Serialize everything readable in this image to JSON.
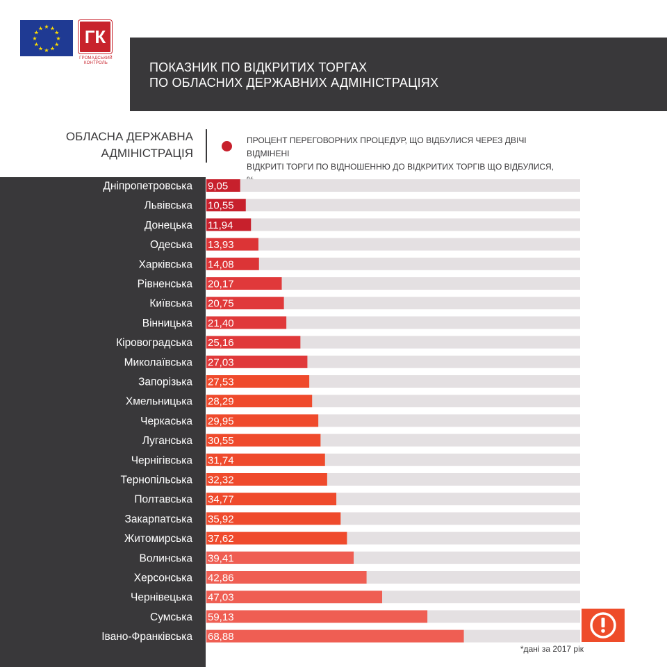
{
  "header": {
    "title_line1": "ПОКАЗНИК ПО ВІДКРИТИХ ТОРГАХ",
    "title_line2": "ПО ОБЛАСНИХ ДЕРЖАВНИХ АДМІНІСТРАЦІЯХ",
    "category_label_line1": "ОБЛАСНА ДЕРЖАВНА",
    "category_label_line2": "АДМІНІСТРАЦІЯ",
    "legend_line1": "ПРОЦЕНТ ПЕРЕГОВОРНИХ ПРОЦЕДУР, ЩО ВІДБУЛИСЯ ЧЕРЕЗ ДВІЧІ ВІДМІНЕНІ",
    "legend_line2": "ВІДКРИТІ ТОРГИ ПО ВІДНОШЕННЮ  ДО ВІДКРИТИХ ТОРГІВ ЩО ВІДБУЛИСЯ, %"
  },
  "logo": {
    "brand_text": "ГК",
    "brand_caption_line1": "ГРОМАДСЬКИЙ",
    "brand_caption_line2": "КОНТРОЛЬ"
  },
  "footnote": "*дані за 2017 рік",
  "icons": {
    "eu": "eu-flag-icon",
    "brand": "gk-logo-icon",
    "legend": "red-dot-icon",
    "alert": "exclamation-circle-icon"
  },
  "colors": {
    "dark": "#39383a",
    "track": "#e4e0e2",
    "bar_dark": "#c7202c",
    "bar_mid": "#e0393a",
    "bar_orange": "#ef4a2c",
    "bar_light": "#ef5e53",
    "alert": "#ee4c2a"
  },
  "chart_data": {
    "type": "bar",
    "orientation": "horizontal",
    "xlim": [
      0,
      100
    ],
    "categories": [
      "Дніпропетровська",
      "Львівська",
      "Донецька",
      "Одеська",
      "Харківська",
      "Рівненська",
      "Київська",
      "Вінницька",
      "Кіровоградська",
      "Миколаївська",
      "Запорізька",
      "Хмельницька",
      "Черкаська",
      "Луганська",
      "Чернігівська",
      "Тернопільська",
      "Полтавська",
      "Закарпатська",
      "Житомирська",
      "Волинська",
      "Херсонська",
      "Чернівецька",
      "Сумська",
      "Івано-Франківська"
    ],
    "values": [
      9.05,
      10.55,
      11.94,
      13.93,
      14.08,
      20.17,
      20.75,
      21.4,
      25.16,
      27.03,
      27.53,
      28.29,
      29.95,
      30.55,
      31.74,
      32.32,
      34.77,
      35.92,
      37.62,
      39.41,
      42.86,
      47.03,
      59.13,
      68.88
    ],
    "value_labels": [
      "9,05",
      "10,55",
      "11,94",
      "13,93",
      "14,08",
      "20,17",
      "20,75",
      "21,40",
      "25,16",
      "27,03",
      "27,53",
      "28,29",
      "29,95",
      "30,55",
      "31,74",
      "32,32",
      "34,77",
      "35,92",
      "37,62",
      "39,41",
      "42,86",
      "47,03",
      "59,13",
      "68,88"
    ],
    "bar_colors": [
      "#c7202c",
      "#c7202c",
      "#c7202c",
      "#dc3436",
      "#dc3436",
      "#e0393a",
      "#e0393a",
      "#e0393a",
      "#e0393a",
      "#e0393a",
      "#ef4a2c",
      "#ef4a2c",
      "#ef4a2c",
      "#ef4a2c",
      "#ef4a2c",
      "#ef4a2c",
      "#ef4a2c",
      "#ef4a2c",
      "#ef4a2c",
      "#ef5e53",
      "#ef5e53",
      "#ef5e53",
      "#ef5e53",
      "#ef5e53"
    ]
  }
}
